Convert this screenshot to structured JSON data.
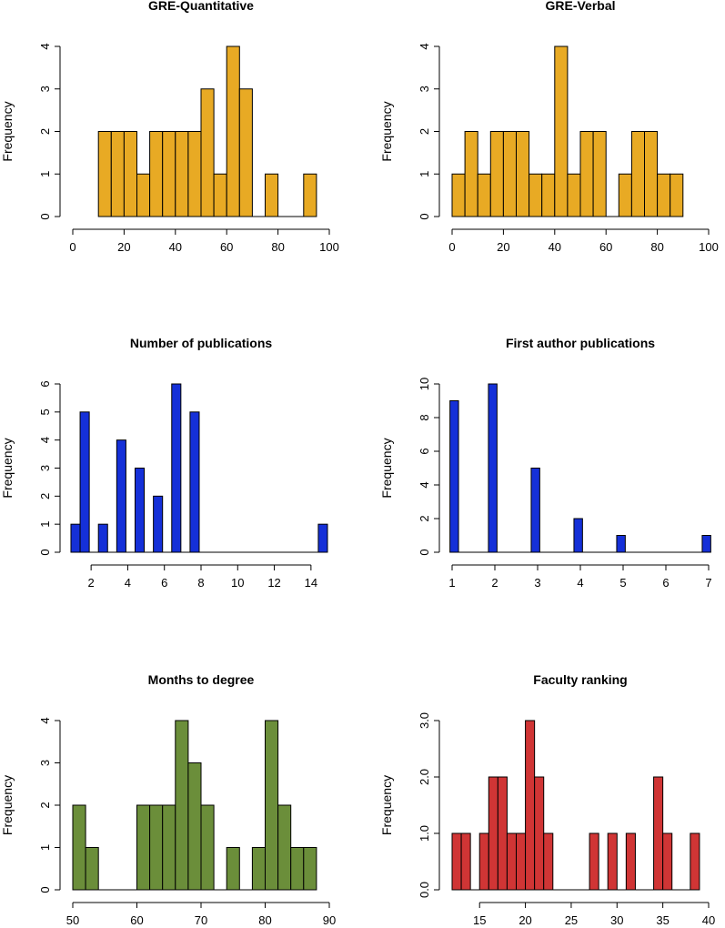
{
  "chart_data": [
    {
      "type": "bar",
      "title": "GRE-Quantitative",
      "xlabel": "",
      "ylabel": "Frequency",
      "color": "#E8AA24",
      "xlim": [
        0,
        100
      ],
      "ylim": [
        0,
        4
      ],
      "xticks": [
        0,
        20,
        40,
        60,
        80,
        100
      ],
      "yticks": [
        0,
        1,
        2,
        3,
        4
      ],
      "bin_starts": [
        10,
        15,
        20,
        25,
        30,
        35,
        40,
        45,
        50,
        55,
        60,
        65,
        70,
        75,
        80,
        85,
        90
      ],
      "bin_width": 5,
      "values": [
        2,
        2,
        2,
        1,
        2,
        2,
        2,
        2,
        3,
        1,
        4,
        3,
        0,
        1,
        0,
        0,
        1
      ]
    },
    {
      "type": "bar",
      "title": "GRE-Verbal",
      "xlabel": "",
      "ylabel": "Frequency",
      "color": "#E8AA24",
      "xlim": [
        0,
        100
      ],
      "ylim": [
        0,
        4
      ],
      "xticks": [
        0,
        20,
        40,
        60,
        80,
        100
      ],
      "yticks": [
        0,
        1,
        2,
        3,
        4
      ],
      "bin_starts": [
        0,
        5,
        10,
        15,
        20,
        25,
        30,
        35,
        40,
        45,
        50,
        55,
        60,
        65,
        70,
        75,
        80,
        85
      ],
      "bin_width": 5,
      "values": [
        1,
        2,
        1,
        2,
        2,
        2,
        1,
        1,
        4,
        1,
        2,
        2,
        0,
        1,
        2,
        2,
        1,
        1
      ]
    },
    {
      "type": "bar",
      "title": "Number of publications",
      "xlabel": "",
      "ylabel": "Frequency",
      "color": "#1530D8",
      "xlim": [
        1,
        15
      ],
      "ylim": [
        0,
        6
      ],
      "xticks": [
        2,
        4,
        6,
        8,
        10,
        12,
        14
      ],
      "yticks": [
        0,
        1,
        2,
        3,
        4,
        5,
        6
      ],
      "bin_starts": [
        0.9,
        1.4,
        1.9,
        2.4,
        2.9,
        3.4,
        3.9,
        4.4,
        4.9,
        5.4,
        5.9,
        6.4,
        6.9,
        7.4,
        7.9,
        8.4,
        8.9,
        9.4,
        9.9,
        10.4,
        10.9,
        11.4,
        11.9,
        12.4,
        12.9,
        13.4,
        13.9,
        14.4
      ],
      "bin_width": 0.5,
      "values": [
        1,
        5,
        0,
        1,
        0,
        4,
        0,
        3,
        0,
        2,
        0,
        6,
        0,
        5,
        0,
        0,
        0,
        0,
        0,
        0,
        0,
        0,
        0,
        0,
        0,
        0,
        0,
        1
      ]
    },
    {
      "type": "bar",
      "title": "First author publications",
      "xlabel": "",
      "ylabel": "Frequency",
      "color": "#1530D8",
      "xlim": [
        1,
        7
      ],
      "ylim": [
        0,
        10
      ],
      "xticks": [
        1,
        2,
        3,
        4,
        5,
        6,
        7
      ],
      "yticks": [
        0,
        2,
        4,
        6,
        8,
        10
      ],
      "bin_starts": [
        0.95,
        1.85,
        2.85,
        3.85,
        4.85,
        6.85
      ],
      "bin_width": 0.2,
      "values": [
        9,
        10,
        5,
        2,
        1,
        1
      ]
    },
    {
      "type": "bar",
      "title": "Months to degree",
      "xlabel": "",
      "ylabel": "Frequency",
      "color": "#6B8E3A",
      "xlim": [
        50,
        90
      ],
      "ylim": [
        0,
        4
      ],
      "xticks": [
        50,
        60,
        70,
        80,
        90
      ],
      "yticks": [
        0,
        1,
        2,
        3,
        4
      ],
      "bin_starts": [
        50,
        52,
        54,
        56,
        58,
        60,
        62,
        64,
        66,
        68,
        70,
        72,
        74,
        76,
        78,
        80,
        82,
        84,
        86
      ],
      "bin_width": 2,
      "values": [
        2,
        1,
        0,
        0,
        0,
        2,
        2,
        2,
        4,
        3,
        2,
        0,
        1,
        0,
        1,
        4,
        2,
        1,
        1
      ]
    },
    {
      "type": "bar",
      "title": "Faculty ranking",
      "xlabel": "",
      "ylabel": "Frequency",
      "color": "#D03535",
      "xlim": [
        12,
        40
      ],
      "ylim": [
        0,
        3
      ],
      "xticks": [
        15,
        20,
        25,
        30,
        35,
        40
      ],
      "ytick_values": [
        0,
        1,
        2,
        3
      ],
      "yticks": [
        "0.0",
        "1.0",
        "2.0",
        "3.0"
      ],
      "bin_starts": [
        12,
        13,
        14,
        15,
        16,
        17,
        18,
        19,
        20,
        21,
        22,
        23,
        24,
        25,
        26,
        27,
        28,
        29,
        30,
        31,
        32,
        33,
        34,
        35,
        36,
        37,
        38
      ],
      "bin_width": 1,
      "values": [
        1,
        1,
        0,
        1,
        2,
        2,
        1,
        1,
        3,
        2,
        1,
        0,
        0,
        0,
        0,
        1,
        0,
        1,
        0,
        1,
        0,
        0,
        2,
        1,
        0,
        0,
        1
      ]
    }
  ]
}
